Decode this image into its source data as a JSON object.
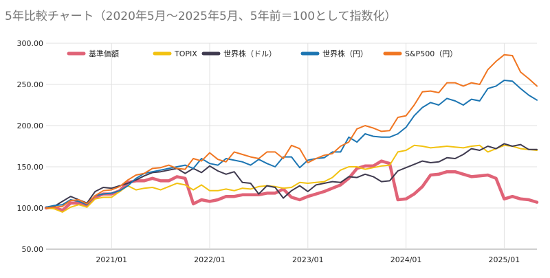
{
  "chart_data": {
    "type": "line",
    "title": "5年比較チャート（2020年5月〜2025年5月、5年前＝100として指数化）",
    "xlabel": "",
    "ylabel": "",
    "ylim": [
      50,
      300
    ],
    "y_ticks": [
      50,
      100,
      150,
      200,
      250,
      300
    ],
    "y_tick_labels": [
      "50.00",
      "100.00",
      "150.00",
      "200.00",
      "250.00",
      "300.00"
    ],
    "x_tick_labels": [
      "2021/01",
      "2022/01",
      "2023/01",
      "2024/01",
      "2025/01"
    ],
    "x_tick_indices": [
      8,
      20,
      32,
      44,
      56
    ],
    "categories": [
      "2020/05",
      "2020/06",
      "2020/07",
      "2020/08",
      "2020/09",
      "2020/10",
      "2020/11",
      "2020/12",
      "2021/01",
      "2021/02",
      "2021/03",
      "2021/04",
      "2021/05",
      "2021/06",
      "2021/07",
      "2021/08",
      "2021/09",
      "2021/10",
      "2021/11",
      "2021/12",
      "2022/01",
      "2022/02",
      "2022/03",
      "2022/04",
      "2022/05",
      "2022/06",
      "2022/07",
      "2022/08",
      "2022/09",
      "2022/10",
      "2022/11",
      "2022/12",
      "2023/01",
      "2023/02",
      "2023/03",
      "2023/04",
      "2023/05",
      "2023/06",
      "2023/07",
      "2023/08",
      "2023/09",
      "2023/10",
      "2023/11",
      "2023/12",
      "2024/01",
      "2024/02",
      "2024/03",
      "2024/04",
      "2024/05",
      "2024/06",
      "2024/07",
      "2024/08",
      "2024/09",
      "2024/10",
      "2024/11",
      "2024/12",
      "2025/01",
      "2025/02",
      "2025/03",
      "2025/04",
      "2025/05"
    ],
    "grid": true,
    "legend_position": "top",
    "series": [
      {
        "name": "基準価額",
        "color": "#e06377",
        "width": 4.5,
        "values": [
          100,
          101,
          97,
          106,
          106,
          103,
          113,
          117,
          117,
          121,
          131,
          133,
          133,
          136,
          133,
          133,
          138,
          136,
          105,
          110,
          108,
          110,
          114,
          114,
          116,
          116,
          116,
          118,
          118,
          123,
          113,
          110,
          114,
          117,
          120,
          124,
          128,
          136,
          148,
          151,
          151,
          157,
          154,
          110,
          111,
          117,
          126,
          140,
          141,
          144,
          144,
          141,
          138,
          139,
          140,
          136,
          111,
          114,
          111,
          110,
          107
        ]
      },
      {
        "name": "TOPIX",
        "color": "#f2c211",
        "width": 2,
        "values": [
          100,
          99,
          95,
          101,
          104,
          101,
          111,
          113,
          113,
          120,
          127,
          122,
          124,
          125,
          122,
          126,
          130,
          128,
          122,
          128,
          121,
          121,
          123,
          121,
          124,
          123,
          126,
          127,
          126,
          124,
          125,
          131,
          130,
          131,
          132,
          137,
          146,
          150,
          150,
          147,
          149,
          151,
          152,
          168,
          170,
          176,
          175,
          173,
          174,
          175,
          174,
          173,
          175,
          176,
          168,
          172,
          176,
          175,
          172,
          171,
          170
        ]
      },
      {
        "name": "世界株（ドル）",
        "color": "#3f3a4f",
        "width": 2,
        "values": [
          101,
          102,
          108,
          114,
          110,
          106,
          120,
          125,
          124,
          127,
          130,
          134,
          139,
          143,
          144,
          146,
          148,
          142,
          148,
          143,
          151,
          145,
          141,
          144,
          131,
          130,
          117,
          127,
          125,
          112,
          121,
          127,
          120,
          128,
          130,
          132,
          131,
          138,
          137,
          141,
          138,
          132,
          133,
          145,
          149,
          153,
          157,
          155,
          156,
          161,
          160,
          165,
          172,
          170,
          175,
          172,
          178,
          175,
          177,
          171,
          171
        ]
      },
      {
        "name": "世界株（円）",
        "color": "#1c75b2",
        "width": 2,
        "values": [
          101,
          103,
          104,
          110,
          108,
          104,
          115,
          117,
          118,
          121,
          127,
          136,
          142,
          144,
          146,
          148,
          150,
          152,
          148,
          160,
          154,
          152,
          160,
          158,
          156,
          152,
          159,
          154,
          150,
          162,
          162,
          149,
          158,
          160,
          161,
          168,
          168,
          186,
          180,
          190,
          187,
          186,
          186,
          190,
          198,
          212,
          222,
          228,
          225,
          233,
          230,
          225,
          232,
          230,
          245,
          248,
          255,
          254,
          245,
          237,
          231
        ]
      },
      {
        "name": "S&P500（円）",
        "color": "#f07622",
        "width": 2,
        "values": [
          100,
          101,
          102,
          109,
          110,
          105,
          115,
          121,
          122,
          126,
          134,
          140,
          142,
          148,
          149,
          152,
          148,
          147,
          160,
          157,
          167,
          159,
          156,
          168,
          165,
          162,
          160,
          168,
          168,
          160,
          176,
          172,
          155,
          160,
          164,
          166,
          175,
          180,
          196,
          200,
          197,
          193,
          194,
          210,
          212,
          225,
          241,
          242,
          240,
          252,
          252,
          248,
          252,
          250,
          268,
          278,
          286,
          285,
          265,
          257,
          248
        ]
      }
    ]
  }
}
